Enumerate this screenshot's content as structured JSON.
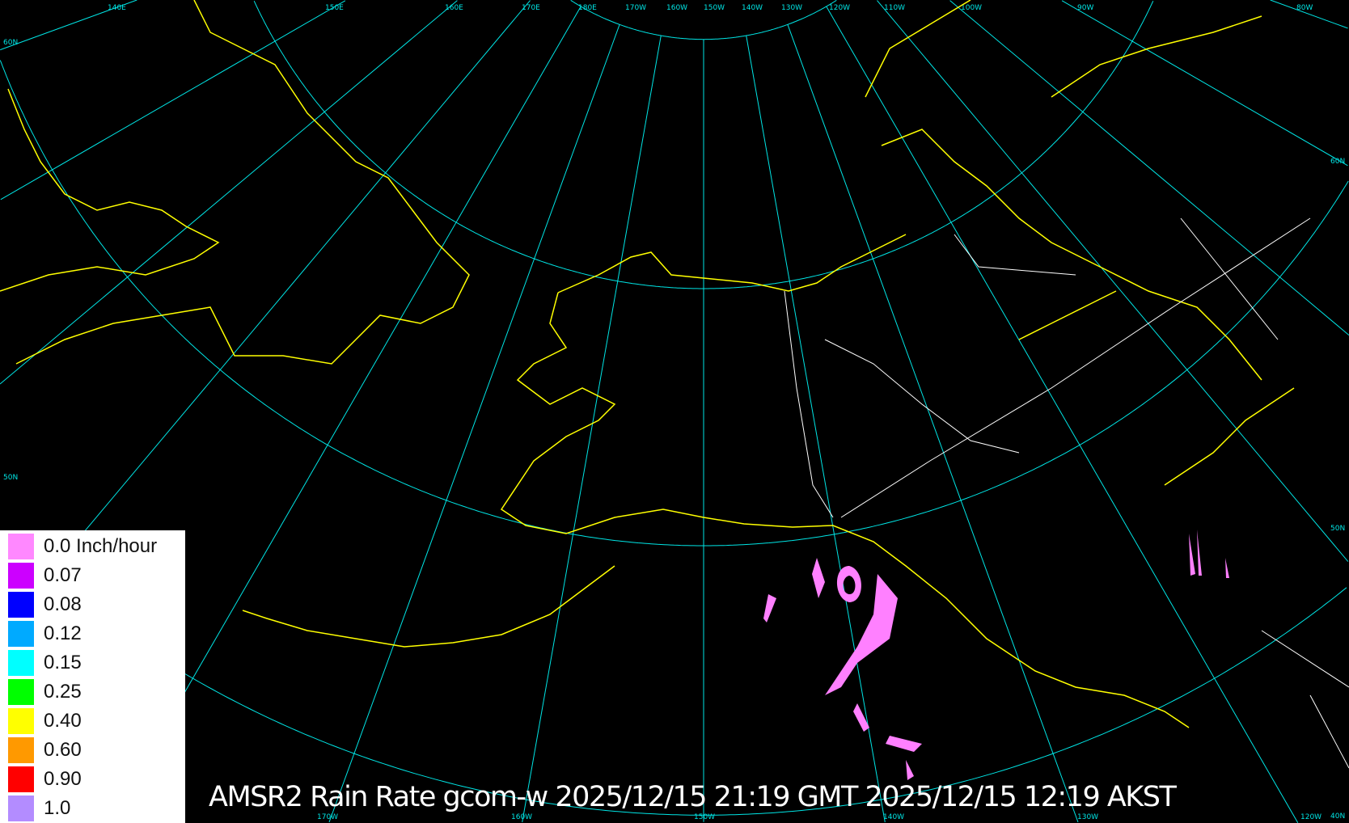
{
  "map": {
    "projection": "polar stereographic",
    "central_meridian": "150W",
    "background_color": "#000000",
    "graticule_color": "#00e5e5",
    "coastline_color": "#ffff00",
    "border_color": "#ffffff",
    "parallels": [
      50,
      60,
      70,
      80
    ],
    "meridians_deg_east": [
      140,
      150,
      160,
      170,
      180,
      -170,
      -160,
      -150,
      -140,
      -130,
      -120,
      -110,
      -100,
      -90,
      -80
    ],
    "top_labels": [
      "140E",
      "150E",
      "160E",
      "170E",
      "180E",
      "170W",
      "160W",
      "150W",
      "140W",
      "130W",
      "120W",
      "110W",
      "100W",
      "90W",
      "80W"
    ],
    "left_labels": [
      "60N",
      "50N"
    ],
    "right_labels": [
      "60N",
      "50N",
      "40N"
    ],
    "bottom_labels": [
      "170W",
      "160W",
      "150W",
      "140W",
      "130W",
      "120W"
    ],
    "rain_color": "#ff80ff"
  },
  "legend": {
    "items": [
      {
        "label": "0.0 Inch/hour",
        "color": "#ff88ff"
      },
      {
        "label": "0.07",
        "color": "#cc00ff"
      },
      {
        "label": "0.08",
        "color": "#0000ff"
      },
      {
        "label": "0.12",
        "color": "#00aaff"
      },
      {
        "label": "0.15",
        "color": "#00ffff"
      },
      {
        "label": "0.25",
        "color": "#00ff00"
      },
      {
        "label": "0.40",
        "color": "#ffff00"
      },
      {
        "label": "0.60",
        "color": "#ff9900"
      },
      {
        "label": "0.90",
        "color": "#ff0000"
      },
      {
        "label": "1.0",
        "color": "#b38cff"
      }
    ]
  },
  "title": "AMSR2 Rain Rate gcom-w 2025/12/15 21:19 GMT 2025/12/15 12:19 AKST"
}
